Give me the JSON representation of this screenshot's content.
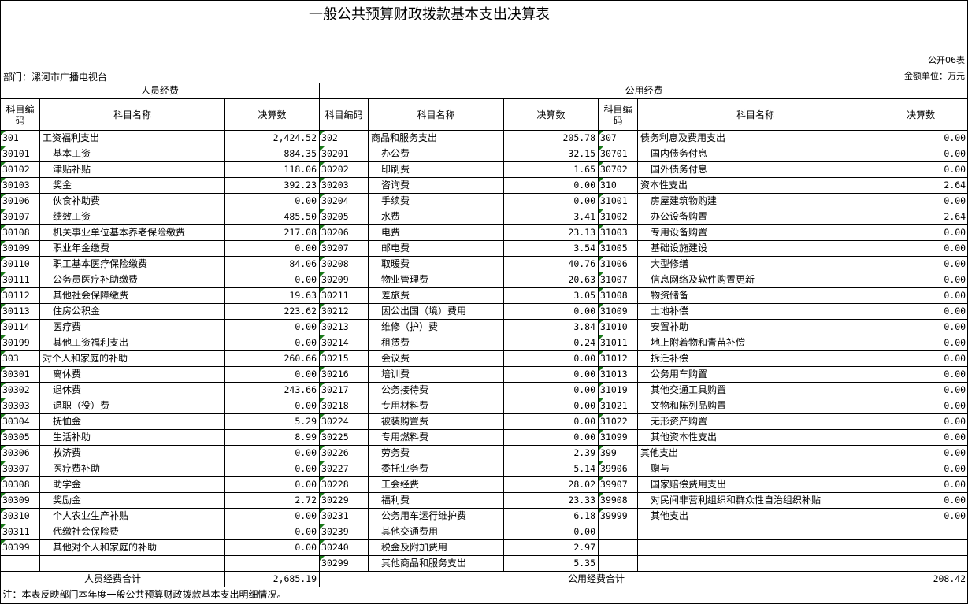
{
  "title": "一般公共预算财政拨款基本支出决算表",
  "form_no": "公开06表",
  "department": "部门：漯河市广播电视台",
  "unit": "金额单位：万元",
  "groups": {
    "personnel": "人员经费",
    "public": "公用经费"
  },
  "headers": {
    "code": "科目编码",
    "name": "科目名称",
    "value": "决算数"
  },
  "personnel_rows": [
    {
      "code": "301",
      "name": "工资福利支出",
      "value": "2,424.52"
    },
    {
      "code": "30101",
      "name": "基本工资",
      "value": "884.35"
    },
    {
      "code": "30102",
      "name": "津贴补贴",
      "value": "118.06"
    },
    {
      "code": "30103",
      "name": "奖金",
      "value": "392.23"
    },
    {
      "code": "30106",
      "name": "伙食补助费",
      "value": "0.00"
    },
    {
      "code": "30107",
      "name": "绩效工资",
      "value": "485.50"
    },
    {
      "code": "30108",
      "name": "机关事业单位基本养老保险缴费",
      "value": "217.08"
    },
    {
      "code": "30109",
      "name": "职业年金缴费",
      "value": "0.00"
    },
    {
      "code": "30110",
      "name": "职工基本医疗保险缴费",
      "value": "84.06"
    },
    {
      "code": "30111",
      "name": "公务员医疗补助缴费",
      "value": "0.00"
    },
    {
      "code": "30112",
      "name": "其他社会保障缴费",
      "value": "19.63"
    },
    {
      "code": "30113",
      "name": "住房公积金",
      "value": "223.62"
    },
    {
      "code": "30114",
      "name": "医疗费",
      "value": "0.00"
    },
    {
      "code": "30199",
      "name": "其他工资福利支出",
      "value": "0.00"
    },
    {
      "code": "303",
      "name": "对个人和家庭的补助",
      "value": "260.66"
    },
    {
      "code": "30301",
      "name": "离休费",
      "value": "0.00"
    },
    {
      "code": "30302",
      "name": "退休费",
      "value": "243.66"
    },
    {
      "code": "30303",
      "name": "退职（役）费",
      "value": "0.00"
    },
    {
      "code": "30304",
      "name": "抚恤金",
      "value": "5.29"
    },
    {
      "code": "30305",
      "name": "生活补助",
      "value": "8.99"
    },
    {
      "code": "30306",
      "name": "救济费",
      "value": "0.00"
    },
    {
      "code": "30307",
      "name": "医疗费补助",
      "value": "0.00"
    },
    {
      "code": "30308",
      "name": "助学金",
      "value": "0.00"
    },
    {
      "code": "30309",
      "name": "奖励金",
      "value": "2.72"
    },
    {
      "code": "30310",
      "name": "个人农业生产补贴",
      "value": "0.00"
    },
    {
      "code": "30311",
      "name": "代缴社会保险费",
      "value": "0.00"
    },
    {
      "code": "30399",
      "name": "其他对个人和家庭的补助",
      "value": "0.00"
    },
    {
      "code": "",
      "name": "",
      "value": ""
    }
  ],
  "public_rows_a": [
    {
      "code": "302",
      "name": "商品和服务支出",
      "value": "205.78"
    },
    {
      "code": "30201",
      "name": "办公费",
      "value": "32.15"
    },
    {
      "code": "30202",
      "name": "印刷费",
      "value": "1.65"
    },
    {
      "code": "30203",
      "name": "咨询费",
      "value": "0.00"
    },
    {
      "code": "30204",
      "name": "手续费",
      "value": "0.00"
    },
    {
      "code": "30205",
      "name": "水费",
      "value": "3.41"
    },
    {
      "code": "30206",
      "name": "电费",
      "value": "23.13"
    },
    {
      "code": "30207",
      "name": "邮电费",
      "value": "3.54"
    },
    {
      "code": "30208",
      "name": "取暖费",
      "value": "40.76"
    },
    {
      "code": "30209",
      "name": "物业管理费",
      "value": "20.63"
    },
    {
      "code": "30211",
      "name": "差旅费",
      "value": "3.05"
    },
    {
      "code": "30212",
      "name": "因公出国（境）费用",
      "value": "0.00"
    },
    {
      "code": "30213",
      "name": "维修（护）费",
      "value": "3.84"
    },
    {
      "code": "30214",
      "name": "租赁费",
      "value": "0.24"
    },
    {
      "code": "30215",
      "name": "会议费",
      "value": "0.00"
    },
    {
      "code": "30216",
      "name": "培训费",
      "value": "0.00"
    },
    {
      "code": "30217",
      "name": "公务接待费",
      "value": "0.00"
    },
    {
      "code": "30218",
      "name": "专用材料费",
      "value": "0.00"
    },
    {
      "code": "30224",
      "name": "被装购置费",
      "value": "0.00"
    },
    {
      "code": "30225",
      "name": "专用燃料费",
      "value": "0.00"
    },
    {
      "code": "30226",
      "name": "劳务费",
      "value": "2.39"
    },
    {
      "code": "30227",
      "name": "委托业务费",
      "value": "5.14"
    },
    {
      "code": "30228",
      "name": "工会经费",
      "value": "28.02"
    },
    {
      "code": "30229",
      "name": "福利费",
      "value": "23.33"
    },
    {
      "code": "30231",
      "name": "公务用车运行维护费",
      "value": "6.18"
    },
    {
      "code": "30239",
      "name": "其他交通费用",
      "value": "0.00"
    },
    {
      "code": "30240",
      "name": "税金及附加费用",
      "value": "2.97"
    },
    {
      "code": "30299",
      "name": "其他商品和服务支出",
      "value": "5.35"
    }
  ],
  "public_rows_b": [
    {
      "code": "307",
      "name": "债务利息及费用支出",
      "value": "0.00"
    },
    {
      "code": "30701",
      "name": "国内债务付息",
      "value": "0.00"
    },
    {
      "code": "30702",
      "name": "国外债务付息",
      "value": "0.00"
    },
    {
      "code": "310",
      "name": "资本性支出",
      "value": "2.64"
    },
    {
      "code": "31001",
      "name": "房屋建筑物购建",
      "value": "0.00"
    },
    {
      "code": "31002",
      "name": "办公设备购置",
      "value": "2.64"
    },
    {
      "code": "31003",
      "name": "专用设备购置",
      "value": "0.00"
    },
    {
      "code": "31005",
      "name": "基础设施建设",
      "value": "0.00"
    },
    {
      "code": "31006",
      "name": "大型修缮",
      "value": "0.00"
    },
    {
      "code": "31007",
      "name": "信息网络及软件购置更新",
      "value": "0.00"
    },
    {
      "code": "31008",
      "name": "物资储备",
      "value": "0.00"
    },
    {
      "code": "31009",
      "name": "土地补偿",
      "value": "0.00"
    },
    {
      "code": "31010",
      "name": "安置补助",
      "value": "0.00"
    },
    {
      "code": "31011",
      "name": "地上附着物和青苗补偿",
      "value": "0.00"
    },
    {
      "code": "31012",
      "name": "拆迁补偿",
      "value": "0.00"
    },
    {
      "code": "31013",
      "name": "公务用车购置",
      "value": "0.00"
    },
    {
      "code": "31019",
      "name": "其他交通工具购置",
      "value": "0.00"
    },
    {
      "code": "31021",
      "name": "文物和陈列品购置",
      "value": "0.00"
    },
    {
      "code": "31022",
      "name": "无形资产购置",
      "value": "0.00"
    },
    {
      "code": "31099",
      "name": "其他资本性支出",
      "value": "0.00"
    },
    {
      "code": "399",
      "name": "其他支出",
      "value": "0.00"
    },
    {
      "code": "39906",
      "name": "赠与",
      "value": "0.00"
    },
    {
      "code": "39907",
      "name": "国家赔偿费用支出",
      "value": "0.00"
    },
    {
      "code": "39908",
      "name": "对民间非营利组织和群众性自治组织补贴",
      "value": "0.00"
    },
    {
      "code": "39999",
      "name": "其他支出",
      "value": "0.00"
    },
    {
      "code": "",
      "name": "",
      "value": ""
    },
    {
      "code": "",
      "name": "",
      "value": ""
    },
    {
      "code": "",
      "name": "",
      "value": ""
    }
  ],
  "totals": {
    "personnel_label": "人员经费合计",
    "personnel_value": "2,685.19",
    "public_label": "公用经费合计",
    "public_value": "208.42"
  },
  "note": "注：本表反映部门本年度一般公共预算财政拨款基本支出明细情况。",
  "colors": {
    "marker": "#1a7a1a"
  }
}
